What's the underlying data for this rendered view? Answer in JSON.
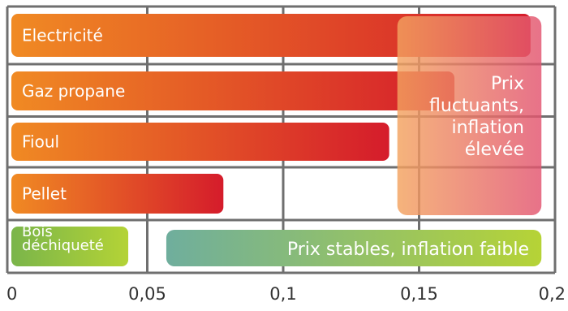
{
  "chart_data": {
    "type": "bar",
    "orientation": "horizontal",
    "title": "",
    "xlabel": "",
    "ylabel": "",
    "xlim": [
      0,
      0.2
    ],
    "x_ticks": [
      0,
      0.05,
      0.1,
      0.15,
      0.2
    ],
    "x_tick_labels": [
      "0",
      "0,05",
      "0,1",
      "0,15",
      "0,2"
    ],
    "grid": true,
    "categories": [
      "Electricité",
      "Gaz propane",
      "Fioul",
      "Pellet",
      "Bois déchiqueté"
    ],
    "values": [
      0.191,
      0.163,
      0.139,
      0.078,
      0.043
    ],
    "category_label_lines": [
      [
        "Electricité"
      ],
      [
        "Gaz propane"
      ],
      [
        "Fioul"
      ],
      [
        "Pellet"
      ],
      [
        "Bois",
        "déchiqueté"
      ]
    ],
    "annotations": [
      {
        "text_lines": [
          "Prix",
          "fluctuants,",
          "inflation",
          "élevée"
        ],
        "x_range": [
          0.142,
          0.195
        ],
        "covers_categories": [
          "Electricité",
          "Gaz propane",
          "Fioul",
          "Pellet"
        ],
        "color": "#e2536f"
      },
      {
        "text": "Prix stables, inflation faible",
        "x_range": [
          0.057,
          0.195
        ],
        "covers_categories": [
          "Bois déchiqueté"
        ],
        "color_start": "#6fae9d",
        "color_end": "#b6d336"
      }
    ],
    "colors": {
      "bar_start": "#f08a23",
      "bar_end_fossil": "#d51c2b",
      "wood_start": "#7ab54a",
      "wood_end": "#b4d336",
      "grid": "#6f6f6f",
      "label_text": "#ffffff",
      "tick_text": "#333333"
    }
  }
}
